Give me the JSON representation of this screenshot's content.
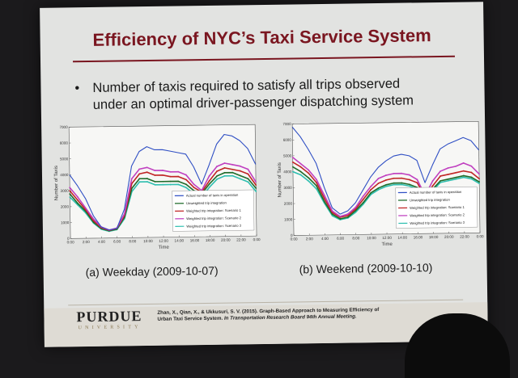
{
  "slide": {
    "title": "Efficiency of NYC’s Taxi Service System",
    "bullet_symbol": "•",
    "bullet_line1": "Number of taxis required to satisfy all trips observed",
    "bullet_line2": "under an optimal driver-passenger dispatching system"
  },
  "charts": [
    {
      "id": "weekday",
      "caption": "(a) Weekday (2009-10-07)",
      "ylabel": "Number of Taxis",
      "xlabel": "Time",
      "yticks": [
        "0",
        "1000",
        "2000",
        "3000",
        "4000",
        "5000",
        "6000",
        "7000"
      ],
      "xticks": [
        "0:00",
        "2:00",
        "4:00",
        "6:00",
        "8:00",
        "10:00",
        "12:00",
        "14:00",
        "16:00",
        "18:00",
        "20:00",
        "22:00",
        "0:00"
      ]
    },
    {
      "id": "weekend",
      "caption": "(b) Weekend (2009-10-10)",
      "ylabel": "Number of Taxis",
      "xlabel": "Time",
      "yticks": [
        "0",
        "1000",
        "2000",
        "3000",
        "4000",
        "5000",
        "6000",
        "7000"
      ],
      "xticks": [
        "0:00",
        "2:00",
        "4:00",
        "6:00",
        "8:00",
        "10:00",
        "12:00",
        "14:00",
        "16:00",
        "18:00",
        "20:00",
        "22:00",
        "0:00"
      ]
    }
  ],
  "legend": [
    {
      "label": "Actual number of taxis in operation",
      "color": "#2f4fc4"
    },
    {
      "label": "Unweighted trip integration",
      "color": "#1f6b2a"
    },
    {
      "label": "Weighted trip integration: Scenario 1",
      "color": "#c02525"
    },
    {
      "label": "Weighted trip integration: Scenario 2",
      "color": "#c040c0"
    },
    {
      "label": "Weighted trip integration: Scenario 3",
      "color": "#2fbfb0"
    }
  ],
  "chart_data": [
    {
      "type": "line",
      "title": "(a) Weekday (2009-10-07)",
      "xlabel": "Time",
      "ylabel": "Number of Taxis",
      "xlim": [
        0,
        24
      ],
      "ylim": [
        0,
        7000
      ],
      "x": [
        0,
        1,
        2,
        3,
        4,
        5,
        6,
        7,
        8,
        9,
        10,
        11,
        12,
        13,
        14,
        15,
        16,
        17,
        18,
        19,
        20,
        21,
        22,
        23,
        24
      ],
      "series": [
        {
          "name": "Actual number of taxis in operation",
          "values": [
            4000,
            3300,
            2500,
            1400,
            700,
            500,
            600,
            1800,
            4500,
            5400,
            5700,
            5500,
            5500,
            5400,
            5300,
            5200,
            4400,
            3300,
            4500,
            5800,
            6400,
            6300,
            6000,
            5500,
            4500
          ]
        },
        {
          "name": "Unweighted trip integration",
          "values": [
            2800,
            2200,
            1700,
            1000,
            600,
            450,
            550,
            1300,
            3100,
            3700,
            3700,
            3500,
            3500,
            3500,
            3500,
            3300,
            2900,
            2700,
            3300,
            3800,
            4000,
            4000,
            3800,
            3600,
            3000
          ]
        },
        {
          "name": "Weighted trip integration: Scenario 1",
          "values": [
            3000,
            2400,
            1800,
            1100,
            650,
            480,
            600,
            1400,
            3400,
            4000,
            4100,
            3900,
            3900,
            3800,
            3800,
            3600,
            3100,
            2800,
            3500,
            4100,
            4300,
            4200,
            4100,
            3900,
            3200
          ]
        },
        {
          "name": "Weighted trip integration: Scenario 2",
          "values": [
            3200,
            2600,
            1900,
            1200,
            700,
            500,
            620,
            1500,
            3700,
            4300,
            4400,
            4200,
            4200,
            4100,
            4100,
            3900,
            3300,
            2900,
            3800,
            4400,
            4600,
            4500,
            4400,
            4200,
            3400
          ]
        },
        {
          "name": "Weighted trip integration: Scenario 3",
          "values": [
            2600,
            2100,
            1600,
            950,
            560,
            420,
            520,
            1200,
            2900,
            3500,
            3500,
            3300,
            3300,
            3300,
            3300,
            3100,
            2700,
            2500,
            3100,
            3600,
            3800,
            3800,
            3600,
            3400,
            2800
          ]
        }
      ]
    },
    {
      "type": "line",
      "title": "(b) Weekend (2009-10-10)",
      "xlabel": "Time",
      "ylabel": "Number of Taxis",
      "xlim": [
        0,
        24
      ],
      "ylim": [
        0,
        7000
      ],
      "x": [
        0,
        1,
        2,
        3,
        4,
        5,
        6,
        7,
        8,
        9,
        10,
        11,
        12,
        13,
        14,
        15,
        16,
        17,
        18,
        19,
        20,
        21,
        22,
        23,
        24
      ],
      "series": [
        {
          "name": "Actual number of taxis in operation",
          "values": [
            6800,
            6200,
            5400,
            4500,
            3000,
            1700,
            1300,
            1500,
            2000,
            2800,
            3600,
            4200,
            4600,
            4900,
            5000,
            4900,
            4600,
            3200,
            4300,
            5300,
            5600,
            5800,
            6000,
            5800,
            5200
          ]
        },
        {
          "name": "Unweighted trip integration",
          "values": [
            4300,
            4000,
            3600,
            3100,
            2100,
            1300,
            1000,
            1100,
            1500,
            2000,
            2600,
            2900,
            3100,
            3200,
            3200,
            3100,
            2900,
            2100,
            2800,
            3300,
            3400,
            3500,
            3600,
            3500,
            3200
          ]
        },
        {
          "name": "Weighted trip integration: Scenario 1",
          "values": [
            4600,
            4300,
            3900,
            3300,
            2300,
            1400,
            1100,
            1200,
            1600,
            2200,
            2800,
            3200,
            3400,
            3500,
            3500,
            3400,
            3200,
            2300,
            3000,
            3600,
            3700,
            3800,
            3900,
            3800,
            3400
          ]
        },
        {
          "name": "Weighted trip integration: Scenario 2",
          "values": [
            4900,
            4500,
            4100,
            3500,
            2500,
            1500,
            1150,
            1300,
            1700,
            2400,
            3000,
            3500,
            3700,
            3800,
            3800,
            3700,
            3400,
            2400,
            3300,
            3900,
            4100,
            4200,
            4400,
            4200,
            3700
          ]
        },
        {
          "name": "Weighted trip integration: Scenario 3",
          "values": [
            4000,
            3800,
            3400,
            2900,
            2000,
            1200,
            950,
            1050,
            1400,
            1900,
            2500,
            2800,
            3000,
            3100,
            3100,
            3000,
            2800,
            2000,
            2700,
            3200,
            3300,
            3400,
            3500,
            3400,
            3100
          ]
        }
      ]
    }
  ],
  "footer": {
    "logo": "PURDUE",
    "logo_sub": "UNIVERSITY",
    "citation_line1": "Zhan, X., Qian, X., & Ukkusuri, S. V. (2015). Graph-Based Approach to Measuring Efficiency of",
    "citation_line2_plain": "Urban Taxi Service System. ",
    "citation_line2_italic": "In Transportation Research Board 94th Annual Meeting."
  }
}
